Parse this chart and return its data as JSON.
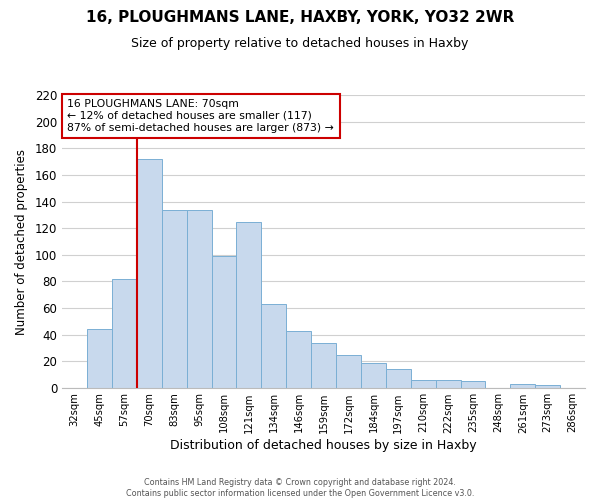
{
  "title": "16, PLOUGHMANS LANE, HAXBY, YORK, YO32 2WR",
  "subtitle": "Size of property relative to detached houses in Haxby",
  "xlabel": "Distribution of detached houses by size in Haxby",
  "ylabel": "Number of detached properties",
  "bin_labels": [
    "32sqm",
    "45sqm",
    "57sqm",
    "70sqm",
    "83sqm",
    "95sqm",
    "108sqm",
    "121sqm",
    "134sqm",
    "146sqm",
    "159sqm",
    "172sqm",
    "184sqm",
    "197sqm",
    "210sqm",
    "222sqm",
    "235sqm",
    "248sqm",
    "261sqm",
    "273sqm",
    "286sqm"
  ],
  "bar_heights": [
    0,
    44,
    82,
    172,
    134,
    134,
    99,
    125,
    63,
    43,
    34,
    25,
    19,
    14,
    6,
    6,
    5,
    0,
    3,
    2,
    0
  ],
  "bar_color": "#c8d9ed",
  "bar_edge_color": "#7aafd4",
  "marker_line_color": "#cc0000",
  "annotation_box_edge": "#cc0000",
  "marker_label": "16 PLOUGHMANS LANE: 70sqm",
  "annotation_line1": "← 12% of detached houses are smaller (117)",
  "annotation_line2": "87% of semi-detached houses are larger (873) →",
  "ylim": [
    0,
    220
  ],
  "yticks": [
    0,
    20,
    40,
    60,
    80,
    100,
    120,
    140,
    160,
    180,
    200,
    220
  ],
  "footer1": "Contains HM Land Registry data © Crown copyright and database right 2024.",
  "footer2": "Contains public sector information licensed under the Open Government Licence v3.0.",
  "bg_color": "#ffffff",
  "grid_color": "#d0d0d0",
  "title_fontsize": 11,
  "subtitle_fontsize": 9
}
